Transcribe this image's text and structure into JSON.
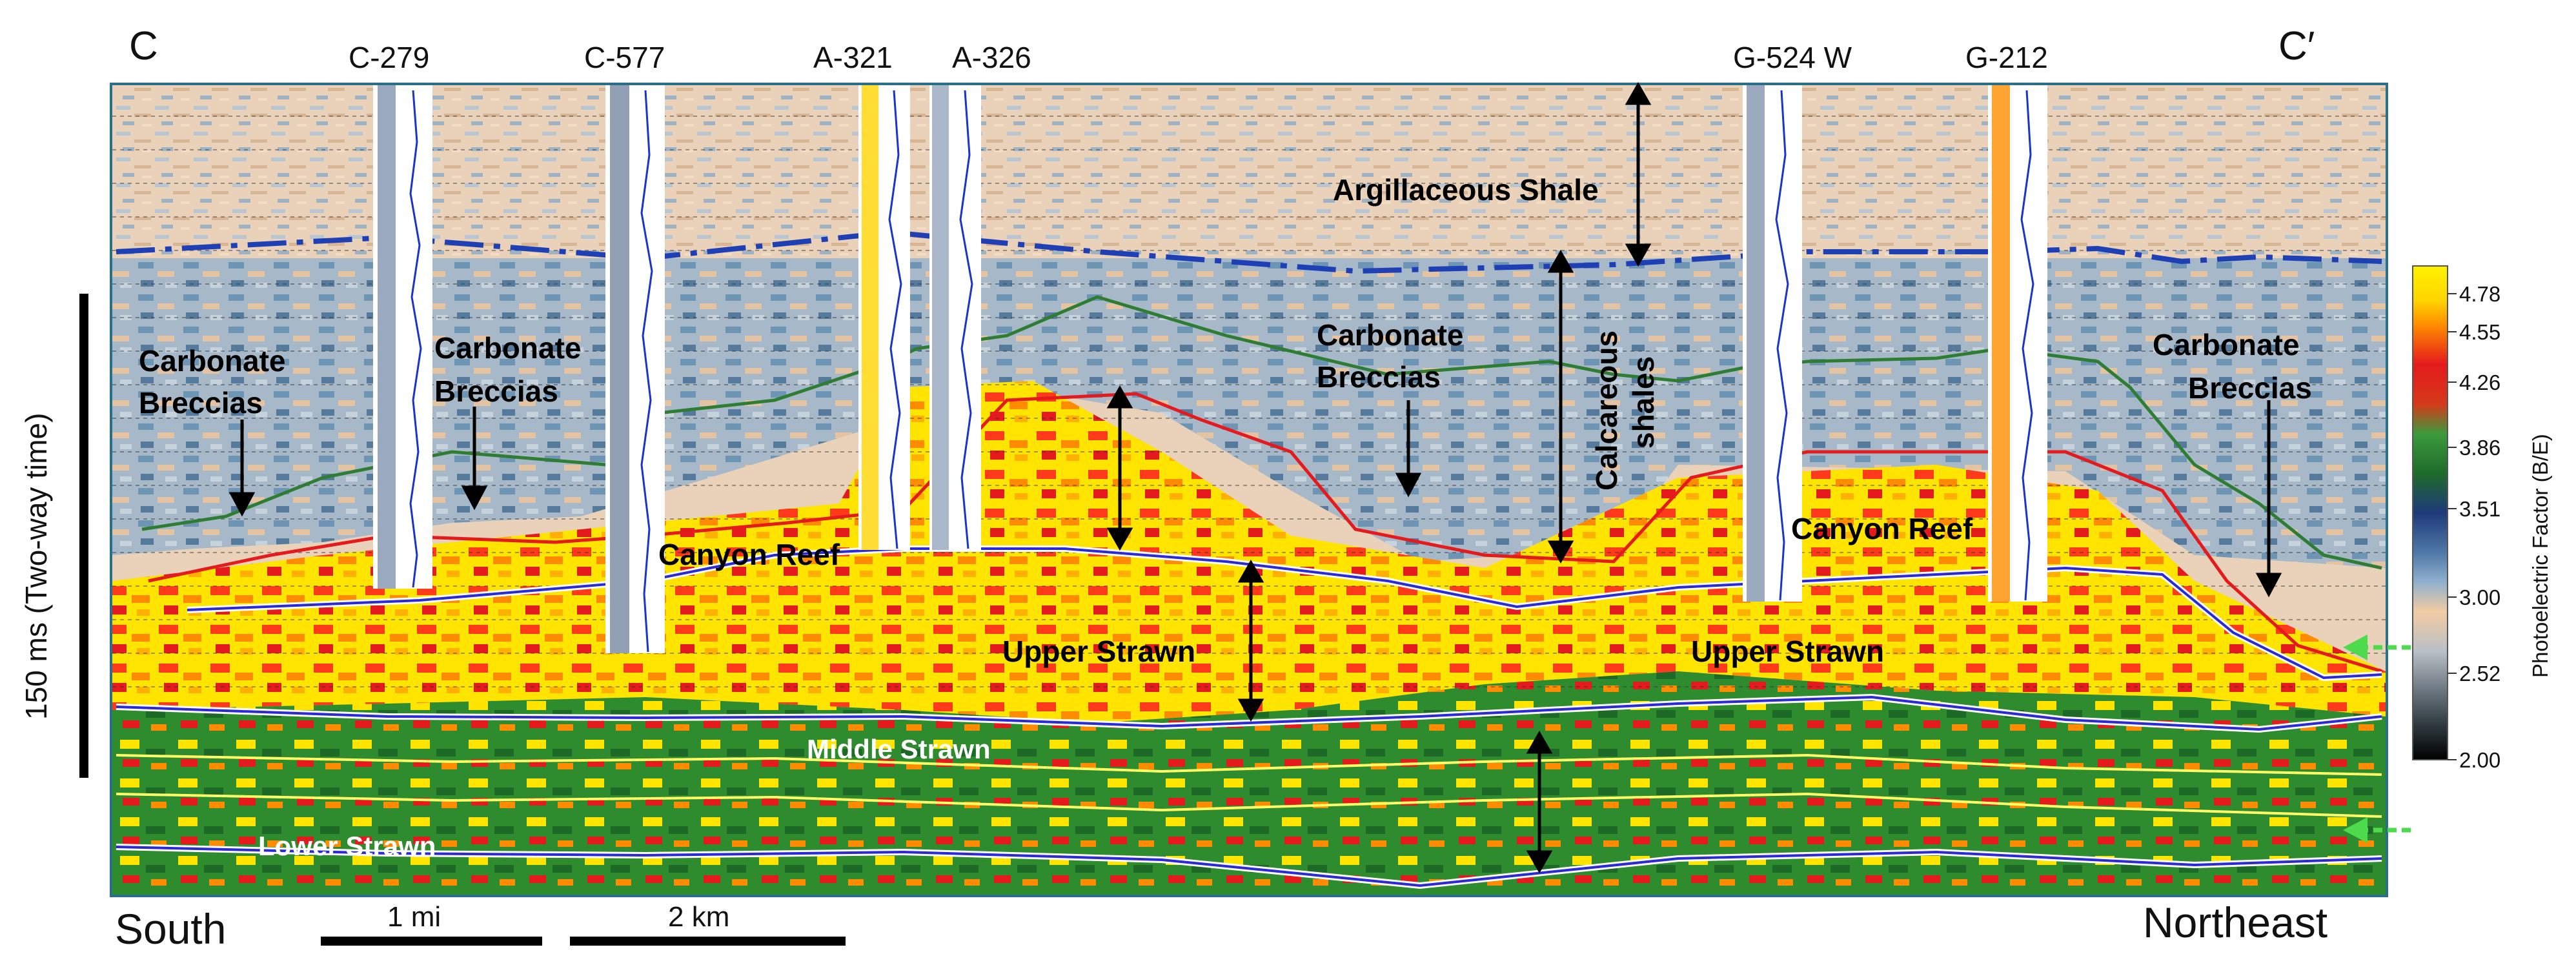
{
  "section": {
    "corner_left": "C",
    "corner_right": "C′",
    "direction_left": "South",
    "direction_right": "Northeast",
    "time_scale_label": "150 ms (Two-way time)"
  },
  "wells": [
    "C-279",
    "C-577",
    "A-321",
    "A-326",
    "G-524 W",
    "G-212"
  ],
  "units": {
    "argillaceous_shale": "Argillaceous Shale",
    "carbonate_breccias_1_l1": "Carbonate",
    "carbonate_breccias_1_l2": "Breccias",
    "carbonate_breccias_2_l1": "Carbonate",
    "carbonate_breccias_2_l2": "Breccias",
    "carbonate_breccias_3_l1": "Carbonate",
    "carbonate_breccias_3_l2": "Breccias",
    "carbonate_breccias_4_l1": "Carbonate",
    "carbonate_breccias_4_l2": "Breccias",
    "calcareous_l1": "Calcareous",
    "calcareous_l2": "shales",
    "canyon_reef_1": "Canyon Reef",
    "canyon_reef_2": "Canyon Reef",
    "upper_strawn_1": "Upper Strawn",
    "upper_strawn_2": "Upper Strawn",
    "middle_strawn": "Middle Strawn",
    "lower_strawn": "Lower Strawn"
  },
  "scale_bars": {
    "miles": "1 mi",
    "kilometers": "2 km"
  },
  "colorbar": {
    "title": "Photoelectric Factor (B/E)",
    "ticks": [
      "4.78",
      "4.55",
      "4.26",
      "3.86",
      "3.51",
      "3.00",
      "2.52",
      "2.00"
    ],
    "colors": {
      "high": "#fff200",
      "orange": "#ff8c00",
      "red": "#e41a1c",
      "green": "#2e8b2e",
      "navy": "#1f3a7a",
      "steel": "#6f95b5",
      "tan": "#f2cba4",
      "gray": "#8f9aa6",
      "low": "#000000"
    }
  }
}
